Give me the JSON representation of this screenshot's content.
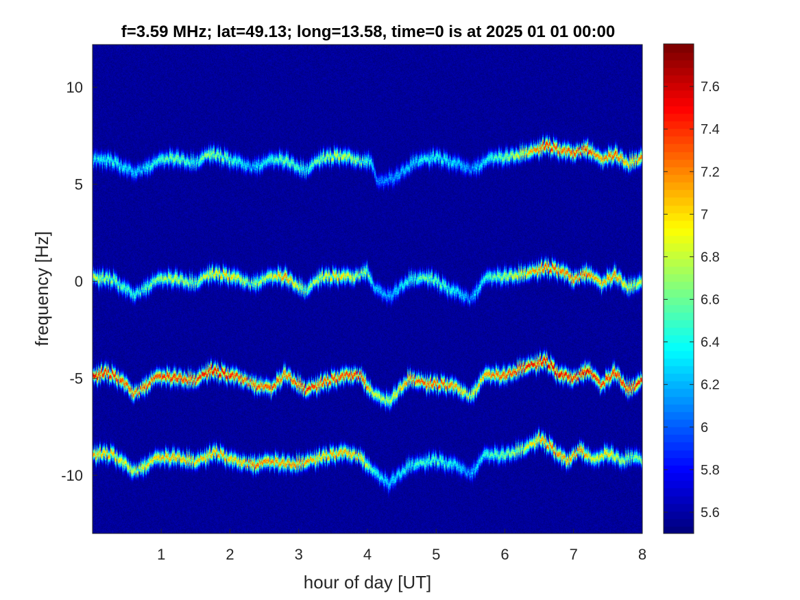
{
  "chart_data": {
    "type": "heatmap",
    "title": "f=3.59 MHz;  lat=49.13; long=13.58, time=0 is at 2025 01 01 00:00",
    "xlabel": "hour of day [UT]",
    "ylabel": "frequency [Hz]",
    "xlim": [
      0,
      8
    ],
    "ylim": [
      -13,
      12.2
    ],
    "xticks": [
      1,
      2,
      3,
      4,
      5,
      6,
      7,
      8
    ],
    "yticks": [
      -10,
      -5,
      0,
      5,
      10
    ],
    "colormap": "jet",
    "clim": [
      5.5,
      7.8
    ],
    "colorbar_ticks": [
      5.6,
      5.8,
      6,
      6.2,
      6.4,
      6.6,
      6.8,
      7,
      7.2,
      7.4,
      7.6
    ],
    "background_level": 5.5,
    "traces": [
      {
        "name": "",
        "offset_hz": 6.2,
        "points": [
          [
            0.0,
            6.3
          ],
          [
            0.3,
            6.2
          ],
          [
            0.6,
            5.6
          ],
          [
            0.9,
            6.1
          ],
          [
            1.2,
            6.4
          ],
          [
            1.5,
            6.1
          ],
          [
            1.7,
            6.6
          ],
          [
            2.0,
            6.3
          ],
          [
            2.3,
            5.9
          ],
          [
            2.6,
            6.2
          ],
          [
            2.8,
            6.3
          ],
          [
            3.1,
            5.7
          ],
          [
            3.3,
            6.3
          ],
          [
            3.6,
            6.5
          ],
          [
            3.9,
            6.2
          ],
          [
            4.05,
            6.3
          ],
          [
            4.15,
            5.0
          ],
          [
            4.4,
            5.4
          ],
          [
            4.7,
            6.2
          ],
          [
            5.0,
            6.4
          ],
          [
            5.2,
            6.2
          ],
          [
            5.5,
            5.8
          ],
          [
            5.8,
            6.3
          ],
          [
            6.1,
            6.5
          ],
          [
            6.4,
            6.7
          ],
          [
            6.6,
            7.0
          ],
          [
            6.8,
            6.8
          ],
          [
            7.0,
            6.6
          ],
          [
            7.2,
            6.9
          ],
          [
            7.4,
            6.2
          ],
          [
            7.6,
            6.6
          ],
          [
            7.8,
            6.1
          ],
          [
            8.0,
            6.4
          ]
        ],
        "peak_levels": [
          6.5,
          6.6,
          6.4,
          6.6,
          6.8,
          6.6,
          6.9,
          6.7,
          6.4,
          6.6,
          6.8,
          6.6,
          6.8,
          7.0,
          6.8,
          6.5,
          6.2,
          6.3,
          6.5,
          6.6,
          6.5,
          6.3,
          6.6,
          6.9,
          7.3,
          7.6,
          7.4,
          7.5,
          7.5,
          7.3,
          7.5,
          7.2,
          7.4
        ]
      },
      {
        "name": "",
        "offset_hz": 0,
        "points": [
          [
            0.0,
            0.2
          ],
          [
            0.3,
            0.1
          ],
          [
            0.6,
            -0.7
          ],
          [
            0.9,
            0.0
          ],
          [
            1.2,
            0.2
          ],
          [
            1.5,
            -0.1
          ],
          [
            1.7,
            0.4
          ],
          [
            2.0,
            0.3
          ],
          [
            2.3,
            -0.1
          ],
          [
            2.6,
            0.2
          ],
          [
            2.8,
            0.3
          ],
          [
            3.1,
            -0.5
          ],
          [
            3.3,
            0.2
          ],
          [
            3.6,
            0.3
          ],
          [
            3.8,
            0.2
          ],
          [
            4.0,
            0.6
          ],
          [
            4.1,
            -0.4
          ],
          [
            4.3,
            -0.8
          ],
          [
            4.6,
            0.1
          ],
          [
            4.9,
            0.2
          ],
          [
            5.2,
            -0.4
          ],
          [
            5.5,
            -0.9
          ],
          [
            5.7,
            0.1
          ],
          [
            6.0,
            0.3
          ],
          [
            6.3,
            0.4
          ],
          [
            6.6,
            0.7
          ],
          [
            6.8,
            0.6
          ],
          [
            7.0,
            0.1
          ],
          [
            7.2,
            0.5
          ],
          [
            7.4,
            -0.2
          ],
          [
            7.6,
            0.4
          ],
          [
            7.8,
            -0.3
          ],
          [
            8.0,
            0.0
          ]
        ],
        "peak_levels": [
          7.0,
          6.8,
          6.6,
          6.8,
          7.0,
          6.8,
          7.1,
          7.2,
          6.8,
          7.0,
          7.4,
          6.8,
          7.0,
          7.2,
          7.0,
          6.8,
          6.4,
          6.3,
          6.6,
          6.8,
          6.6,
          6.3,
          6.6,
          6.9,
          7.2,
          7.5,
          7.4,
          7.4,
          7.4,
          7.2,
          7.4,
          7.0,
          7.0
        ]
      },
      {
        "name": "",
        "offset_hz": -5,
        "points": [
          [
            0.0,
            -4.9
          ],
          [
            0.2,
            -4.7
          ],
          [
            0.4,
            -5.0
          ],
          [
            0.6,
            -5.8
          ],
          [
            0.9,
            -5.0
          ],
          [
            1.2,
            -4.9
          ],
          [
            1.5,
            -5.1
          ],
          [
            1.7,
            -4.6
          ],
          [
            2.0,
            -4.8
          ],
          [
            2.3,
            -5.2
          ],
          [
            2.6,
            -5.6
          ],
          [
            2.8,
            -4.7
          ],
          [
            3.1,
            -5.6
          ],
          [
            3.3,
            -5.3
          ],
          [
            3.6,
            -4.9
          ],
          [
            3.9,
            -4.8
          ],
          [
            4.1,
            -5.9
          ],
          [
            4.3,
            -6.2
          ],
          [
            4.6,
            -5.0
          ],
          [
            4.9,
            -5.3
          ],
          [
            5.2,
            -5.3
          ],
          [
            5.5,
            -5.9
          ],
          [
            5.7,
            -4.9
          ],
          [
            6.0,
            -4.8
          ],
          [
            6.3,
            -4.4
          ],
          [
            6.6,
            -4.1
          ],
          [
            6.8,
            -4.8
          ],
          [
            7.0,
            -5.0
          ],
          [
            7.2,
            -4.5
          ],
          [
            7.4,
            -5.4
          ],
          [
            7.6,
            -4.6
          ],
          [
            7.8,
            -5.6
          ],
          [
            8.0,
            -5.1
          ]
        ],
        "peak_levels": [
          7.7,
          7.6,
          7.5,
          7.4,
          7.5,
          7.6,
          7.5,
          7.7,
          7.6,
          7.4,
          7.5,
          7.4,
          7.6,
          7.5,
          7.5,
          7.6,
          7.0,
          6.9,
          7.4,
          7.5,
          7.4,
          7.0,
          7.3,
          7.5,
          7.6,
          7.7,
          7.7,
          7.6,
          7.7,
          7.5,
          7.6,
          7.6,
          7.6
        ]
      },
      {
        "name": "",
        "offset_hz": -9.2,
        "points": [
          [
            0.0,
            -8.9
          ],
          [
            0.3,
            -8.9
          ],
          [
            0.6,
            -9.8
          ],
          [
            0.9,
            -9.2
          ],
          [
            1.2,
            -9.0
          ],
          [
            1.5,
            -9.3
          ],
          [
            1.8,
            -8.8
          ],
          [
            2.1,
            -9.3
          ],
          [
            2.4,
            -9.4
          ],
          [
            2.7,
            -9.3
          ],
          [
            3.0,
            -9.4
          ],
          [
            3.3,
            -9.1
          ],
          [
            3.6,
            -8.8
          ],
          [
            3.9,
            -9.0
          ],
          [
            4.1,
            -9.9
          ],
          [
            4.3,
            -10.4
          ],
          [
            4.6,
            -9.5
          ],
          [
            5.0,
            -9.2
          ],
          [
            5.3,
            -9.5
          ],
          [
            5.5,
            -9.9
          ],
          [
            5.7,
            -9.0
          ],
          [
            6.0,
            -8.9
          ],
          [
            6.3,
            -8.6
          ],
          [
            6.5,
            -8.1
          ],
          [
            6.7,
            -8.6
          ],
          [
            6.9,
            -9.3
          ],
          [
            7.1,
            -8.6
          ],
          [
            7.3,
            -9.3
          ],
          [
            7.5,
            -8.8
          ],
          [
            7.7,
            -9.2
          ],
          [
            7.9,
            -9.0
          ],
          [
            8.0,
            -9.3
          ]
        ],
        "peak_levels": [
          7.3,
          7.2,
          7.0,
          7.2,
          7.3,
          7.2,
          7.3,
          7.2,
          7.4,
          7.3,
          7.4,
          7.2,
          7.3,
          7.2,
          6.6,
          6.4,
          6.6,
          6.7,
          6.5,
          6.3,
          6.6,
          6.8,
          7.0,
          7.3,
          7.4,
          7.3,
          7.4,
          7.0,
          7.2,
          6.9,
          6.8,
          6.8
        ]
      }
    ],
    "gaps_hz": []
  }
}
